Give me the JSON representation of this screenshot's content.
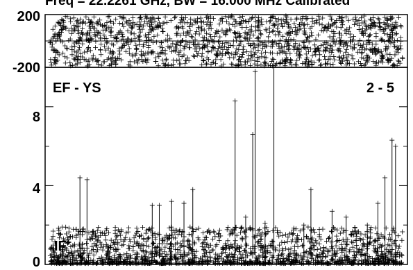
{
  "chart_data": [
    {
      "type": "scatter",
      "panel": "phase",
      "title": "Freq = 22.2261 GHz, BW = 16.000 MHz  Calibrated",
      "xlabel": "",
      "ylabel": "",
      "x_range": [
        0,
        1
      ],
      "ylim": [
        -200,
        200
      ],
      "y_ticks": [
        200,
        -200
      ],
      "y_tick_labels": [
        "200",
        "-200"
      ],
      "grid": false,
      "marker": "plus",
      "distribution": {
        "y_min": -190,
        "y_max": 190,
        "n_points": 1400
      }
    },
    {
      "type": "scatter",
      "panel": "amplitude",
      "baseline_label": "EF - YS",
      "channel_label": "2 - 5",
      "corner_label": "IF",
      "xlabel": "",
      "ylabel": "",
      "x_range": [
        0,
        1
      ],
      "ylim": [
        0,
        10
      ],
      "y_ticks": [
        0,
        4,
        8
      ],
      "y_tick_labels": [
        "0",
        "4",
        "8"
      ],
      "grid": false,
      "marker": "plus",
      "spikes": [
        {
          "x": 0.085,
          "y": 4.4
        },
        {
          "x": 0.105,
          "y": 4.3
        },
        {
          "x": 0.29,
          "y": 3.0
        },
        {
          "x": 0.31,
          "y": 3.0
        },
        {
          "x": 0.345,
          "y": 3.2
        },
        {
          "x": 0.38,
          "y": 3.1
        },
        {
          "x": 0.405,
          "y": 3.8
        },
        {
          "x": 0.525,
          "y": 8.3
        },
        {
          "x": 0.555,
          "y": 2.4
        },
        {
          "x": 0.575,
          "y": 6.6
        },
        {
          "x": 0.582,
          "y": 9.8
        },
        {
          "x": 0.61,
          "y": 2.1
        },
        {
          "x": 0.635,
          "y": 10.4
        },
        {
          "x": 0.72,
          "y": 2.0
        },
        {
          "x": 0.74,
          "y": 3.8
        },
        {
          "x": 0.8,
          "y": 2.7
        },
        {
          "x": 0.84,
          "y": 2.4
        },
        {
          "x": 0.9,
          "y": 2.0
        },
        {
          "x": 0.93,
          "y": 3.1
        },
        {
          "x": 0.95,
          "y": 4.4
        },
        {
          "x": 0.97,
          "y": 6.3
        },
        {
          "x": 0.98,
          "y": 6.0
        }
      ],
      "distribution": {
        "y_min": 0.05,
        "y_max": 1.9,
        "n_points": 1600
      }
    }
  ]
}
